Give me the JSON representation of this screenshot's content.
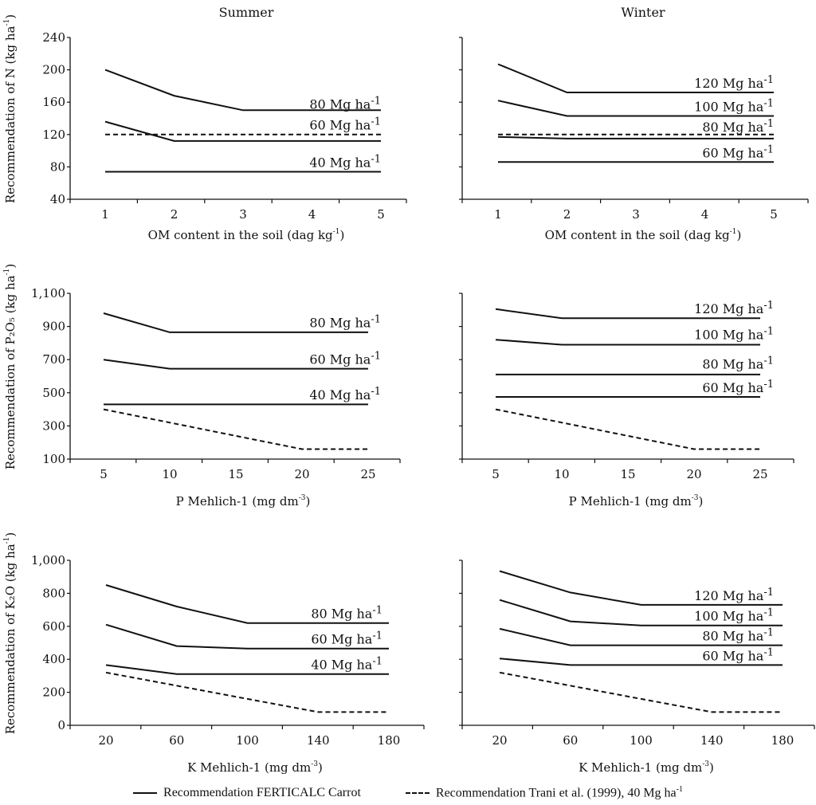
{
  "chart_data": [
    {
      "id": "n-summer",
      "type": "line",
      "title": "Summer",
      "xlabel": "OM content in the soil (dag kg",
      "xlabel_sup": "-1",
      "ylabel": "Recommendation of N  (kg ha",
      "ylabel_sup": "-1",
      "x_ticks": [
        1,
        2,
        3,
        4,
        5
      ],
      "y_ticks": [
        "40",
        "80",
        "120",
        "160",
        "200",
        "240"
      ],
      "xlim": [
        0.5,
        5.5
      ],
      "ylim": [
        40,
        240
      ],
      "series": [
        {
          "name": "80 Mg ha",
          "style": "solid",
          "x": [
            1,
            2,
            3,
            4,
            5
          ],
          "y": [
            200,
            168,
            150,
            150,
            150
          ]
        },
        {
          "name": "60 Mg ha",
          "style": "solid",
          "x": [
            1,
            2,
            3,
            4,
            5
          ],
          "y": [
            136,
            112,
            112,
            112,
            112
          ]
        },
        {
          "name": "40 Mg ha",
          "style": "solid",
          "x": [
            1,
            2,
            3,
            4,
            5
          ],
          "y": [
            74,
            74,
            74,
            74,
            74
          ]
        },
        {
          "name": "Trani et al. (1999), 40 Mg ha",
          "style": "dashed",
          "x": [
            1,
            2,
            3,
            4,
            5
          ],
          "y": [
            120,
            120,
            120,
            120,
            120
          ]
        }
      ],
      "labels": [
        {
          "text": "80 Mg ha",
          "sup": "-1",
          "at_y": 150
        },
        {
          "text": "60 Mg ha",
          "sup": "-1",
          "at_y": 124
        },
        {
          "text": "40 Mg ha",
          "sup": "-1",
          "at_y": 78
        }
      ]
    },
    {
      "id": "n-winter",
      "type": "line",
      "title": "Winter",
      "xlabel": "OM content in the soil (dag kg",
      "xlabel_sup": "-1",
      "ylabel": "",
      "x_ticks": [
        1,
        2,
        3,
        4,
        5
      ],
      "y_ticks": [
        "",
        "",
        "",
        "",
        "",
        ""
      ],
      "xlim": [
        0.5,
        5.5
      ],
      "ylim": [
        40,
        240
      ],
      "series": [
        {
          "name": "120 Mg ha",
          "style": "solid",
          "x": [
            1,
            2,
            3,
            4,
            5
          ],
          "y": [
            207,
            172,
            172,
            172,
            172
          ]
        },
        {
          "name": "100 Mg ha",
          "style": "solid",
          "x": [
            1,
            2,
            3,
            4,
            5
          ],
          "y": [
            162,
            143,
            143,
            143,
            143
          ]
        },
        {
          "name": "80 Mg ha",
          "style": "solid",
          "x": [
            1,
            2,
            3,
            4,
            5
          ],
          "y": [
            117,
            115,
            115,
            115,
            115
          ]
        },
        {
          "name": "60 Mg ha",
          "style": "solid",
          "x": [
            1,
            2,
            3,
            4,
            5
          ],
          "y": [
            86,
            86,
            86,
            86,
            86
          ]
        },
        {
          "name": "Trani et al. (1999), 40 Mg ha",
          "style": "dashed",
          "x": [
            1,
            2,
            3,
            4,
            5
          ],
          "y": [
            120,
            120,
            120,
            120,
            120
          ]
        }
      ],
      "labels": [
        {
          "text": "120 Mg ha",
          "sup": "-1",
          "at_y": 176
        },
        {
          "text": "100 Mg ha",
          "sup": "-1",
          "at_y": 147
        },
        {
          "text": "80 Mg ha",
          "sup": "-1",
          "at_y": 122
        },
        {
          "text": "60 Mg ha",
          "sup": "-1",
          "at_y": 90
        }
      ]
    },
    {
      "id": "p-summer",
      "type": "line",
      "title": "",
      "xlabel": "P Mehlich-1 (mg dm",
      "xlabel_sup": "-3",
      "ylabel": "Recommendation of P₂O₅ (kg ha",
      "ylabel_sup": "-1",
      "x_ticks": [
        5,
        10,
        15,
        20,
        25
      ],
      "y_ticks": [
        "100",
        "300",
        "500",
        "700",
        "900",
        "1,100"
      ],
      "xlim": [
        2.5,
        27.5
      ],
      "ylim": [
        100,
        1100
      ],
      "series": [
        {
          "name": "80 Mg ha",
          "style": "solid",
          "x": [
            5,
            10,
            15,
            20,
            25
          ],
          "y": [
            980,
            865,
            865,
            865,
            865
          ]
        },
        {
          "name": "60 Mg ha",
          "style": "solid",
          "x": [
            5,
            10,
            15,
            20,
            25
          ],
          "y": [
            700,
            645,
            645,
            645,
            645
          ]
        },
        {
          "name": "40 Mg ha",
          "style": "solid",
          "x": [
            5,
            10,
            15,
            20,
            25
          ],
          "y": [
            430,
            430,
            430,
            430,
            430
          ]
        },
        {
          "name": "Trani et al. (1999), 40 Mg ha",
          "style": "dashed",
          "x": [
            5,
            10,
            15,
            20,
            25
          ],
          "y": [
            400,
            320,
            240,
            160,
            160
          ]
        }
      ],
      "labels": [
        {
          "text": "80 Mg ha",
          "sup": "-1",
          "at_y": 885
        },
        {
          "text": "60 Mg ha",
          "sup": "-1",
          "at_y": 665
        },
        {
          "text": "40 Mg ha",
          "sup": "-1",
          "at_y": 450
        }
      ]
    },
    {
      "id": "p-winter",
      "type": "line",
      "title": "",
      "xlabel": "P Mehlich-1 (mg dm",
      "xlabel_sup": "-3",
      "ylabel": "",
      "x_ticks": [
        5,
        10,
        15,
        20,
        25
      ],
      "y_ticks": [
        "",
        "",
        "",
        "",
        "",
        ""
      ],
      "xlim": [
        2.5,
        27.5
      ],
      "ylim": [
        100,
        1100
      ],
      "series": [
        {
          "name": "120 Mg ha",
          "style": "solid",
          "x": [
            5,
            10,
            15,
            20,
            25
          ],
          "y": [
            1005,
            950,
            950,
            950,
            950
          ]
        },
        {
          "name": "100 Mg ha",
          "style": "solid",
          "x": [
            5,
            10,
            15,
            20,
            25
          ],
          "y": [
            820,
            790,
            790,
            790,
            790
          ]
        },
        {
          "name": "80 Mg ha",
          "style": "solid",
          "x": [
            5,
            10,
            15,
            20,
            25
          ],
          "y": [
            610,
            610,
            610,
            610,
            610
          ]
        },
        {
          "name": "60 Mg ha",
          "style": "solid",
          "x": [
            5,
            10,
            15,
            20,
            25
          ],
          "y": [
            475,
            475,
            475,
            475,
            475
          ]
        },
        {
          "name": "Trani et al. (1999), 40 Mg ha",
          "style": "dashed",
          "x": [
            5,
            10,
            15,
            20,
            25
          ],
          "y": [
            400,
            320,
            240,
            160,
            160
          ]
        }
      ],
      "labels": [
        {
          "text": "120 Mg ha",
          "sup": "-1",
          "at_y": 970
        },
        {
          "text": "100 Mg ha",
          "sup": "-1",
          "at_y": 815
        },
        {
          "text": "80 Mg ha",
          "sup": "-1",
          "at_y": 635
        },
        {
          "text": "60 Mg ha",
          "sup": "-1",
          "at_y": 495
        }
      ]
    },
    {
      "id": "k-summer",
      "type": "line",
      "title": "",
      "xlabel": "K Mehlich-1 (mg dm",
      "xlabel_sup": "-3",
      "ylabel": "Recommendation of K₂O (kg ha",
      "ylabel_sup": "-1",
      "x_ticks": [
        20,
        60,
        100,
        140,
        180
      ],
      "y_ticks": [
        "0",
        "200",
        "400",
        "600",
        "800",
        "1,000"
      ],
      "xlim": [
        0,
        200
      ],
      "ylim": [
        0,
        1000
      ],
      "series": [
        {
          "name": "80 Mg ha",
          "style": "solid",
          "x": [
            20,
            60,
            100,
            140,
            180
          ],
          "y": [
            850,
            720,
            620,
            620,
            620
          ]
        },
        {
          "name": "60 Mg ha",
          "style": "solid",
          "x": [
            20,
            60,
            100,
            140,
            180
          ],
          "y": [
            610,
            480,
            465,
            465,
            465
          ]
        },
        {
          "name": "40 Mg ha",
          "style": "solid",
          "x": [
            20,
            60,
            100,
            140,
            180
          ],
          "y": [
            365,
            310,
            310,
            310,
            310
          ]
        },
        {
          "name": "Trani et al. (1999), 40 Mg ha",
          "style": "dashed",
          "x": [
            20,
            60,
            100,
            140,
            180
          ],
          "y": [
            320,
            240,
            160,
            80,
            80
          ]
        }
      ],
      "labels": [
        {
          "text": "80 Mg ha",
          "sup": "-1",
          "at_y": 640
        },
        {
          "text": "60 Mg ha",
          "sup": "-1",
          "at_y": 485
        },
        {
          "text": "40 Mg ha",
          "sup": "-1",
          "at_y": 330
        }
      ]
    },
    {
      "id": "k-winter",
      "type": "line",
      "title": "",
      "xlabel": "K Mehlich-1 (mg dm",
      "xlabel_sup": "-3",
      "ylabel": "",
      "x_ticks": [
        20,
        60,
        100,
        140,
        180
      ],
      "y_ticks": [
        "",
        "",
        "",
        "",
        "",
        ""
      ],
      "xlim": [
        0,
        200
      ],
      "ylim": [
        0,
        1000
      ],
      "series": [
        {
          "name": "120 Mg ha",
          "style": "solid",
          "x": [
            20,
            60,
            100,
            140,
            180
          ],
          "y": [
            935,
            805,
            730,
            730,
            730
          ]
        },
        {
          "name": "100 Mg ha",
          "style": "solid",
          "x": [
            20,
            60,
            100,
            140,
            180
          ],
          "y": [
            760,
            630,
            605,
            605,
            605
          ]
        },
        {
          "name": "80 Mg ha",
          "style": "solid",
          "x": [
            20,
            60,
            100,
            140,
            180
          ],
          "y": [
            585,
            485,
            485,
            485,
            485
          ]
        },
        {
          "name": "60 Mg ha",
          "style": "solid",
          "x": [
            20,
            60,
            100,
            140,
            180
          ],
          "y": [
            405,
            365,
            365,
            365,
            365
          ]
        },
        {
          "name": "Trani et al. (1999), 40 Mg ha",
          "style": "dashed",
          "x": [
            20,
            60,
            100,
            140,
            180
          ],
          "y": [
            320,
            240,
            160,
            80,
            80
          ]
        }
      ],
      "labels": [
        {
          "text": "120 Mg ha",
          "sup": "-1",
          "at_y": 750
        },
        {
          "text": "100 Mg ha",
          "sup": "-1",
          "at_y": 625
        },
        {
          "text": "80 Mg ha",
          "sup": "-1",
          "at_y": 505
        },
        {
          "text": "60 Mg ha",
          "sup": "-1",
          "at_y": 385
        }
      ]
    }
  ],
  "legend": {
    "solid_label": "Recommendation FERTICALC Carrot",
    "dashed_label": "Recommendation Trani et al. (1999), 40 Mg ha",
    "dashed_sup": "-1"
  }
}
